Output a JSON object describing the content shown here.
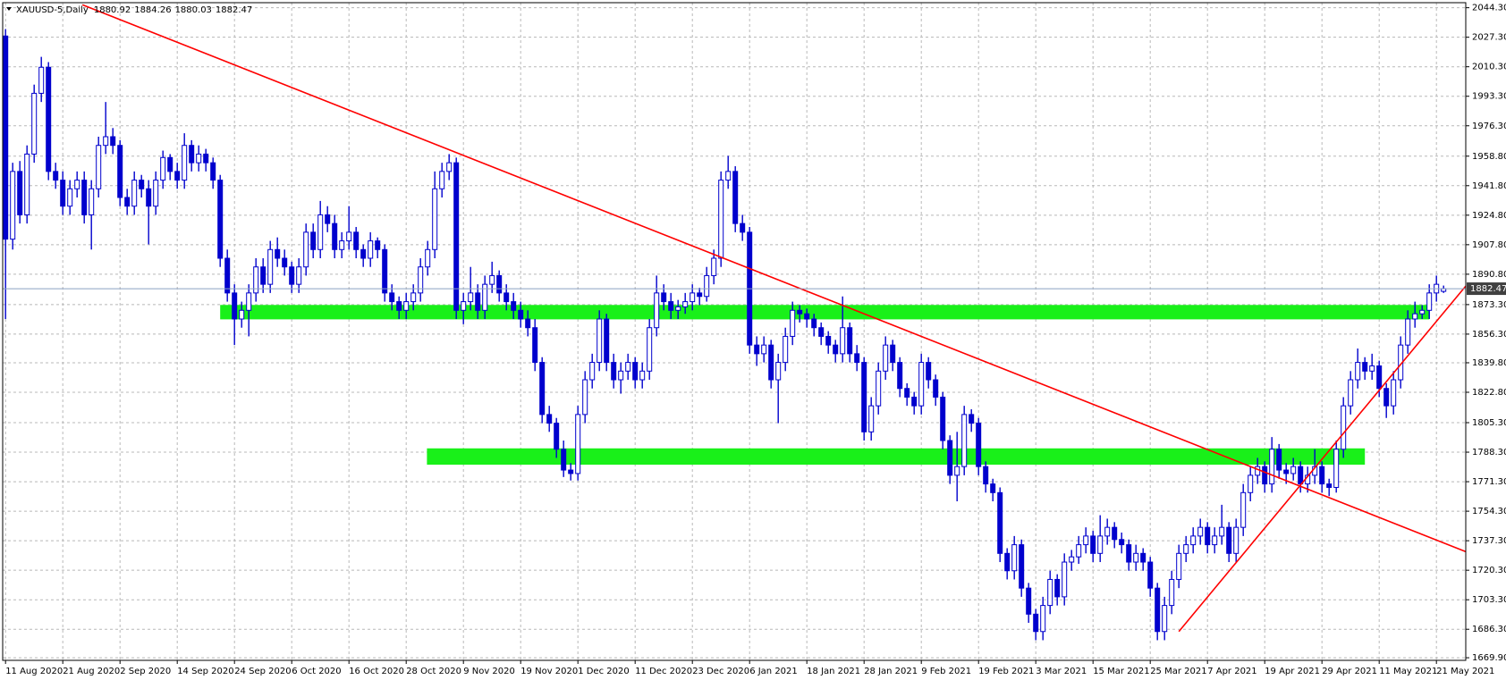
{
  "chart_data": {
    "type": "candlestick",
    "symbol": "XAUUSD-5,Daily",
    "up_color": "#ffffff",
    "down_color": "#0000cd",
    "wick_color": "#0000cd",
    "grid": true,
    "grid_color": "#b8b8b8",
    "xlim": [
      -0.4,
      204.1
    ],
    "ylim": [
      1668.4,
      2047.2
    ],
    "yticks": [
      {
        "value": 2044.3,
        "label": "2044.30"
      },
      {
        "value": 2027.3,
        "label": "2027.30"
      },
      {
        "value": 2010.3,
        "label": "2010.30"
      },
      {
        "value": 1993.3,
        "label": "1993.30"
      },
      {
        "value": 1976.3,
        "label": "1976.30"
      },
      {
        "value": 1958.8,
        "label": "1958.80"
      },
      {
        "value": 1941.8,
        "label": "1941.80"
      },
      {
        "value": 1924.8,
        "label": "1924.80"
      },
      {
        "value": 1907.8,
        "label": "1907.80"
      },
      {
        "value": 1890.8,
        "label": "1890.80"
      },
      {
        "value": 1873.3,
        "label": "1873.30"
      },
      {
        "value": 1856.3,
        "label": "1856.30"
      },
      {
        "value": 1839.8,
        "label": "1839.80"
      },
      {
        "value": 1822.8,
        "label": "1822.80"
      },
      {
        "value": 1805.3,
        "label": "1805.30"
      },
      {
        "value": 1788.3,
        "label": "1788.30"
      },
      {
        "value": 1771.3,
        "label": "1771.30"
      },
      {
        "value": 1754.3,
        "label": "1754.30"
      },
      {
        "value": 1737.3,
        "label": "1737.30"
      },
      {
        "value": 1720.3,
        "label": "1720.30"
      },
      {
        "value": 1703.3,
        "label": "1703.30"
      },
      {
        "value": 1686.3,
        "label": "1686.30"
      },
      {
        "value": 1669.9,
        "label": "1669.90"
      }
    ],
    "xticks": [
      {
        "value": 0,
        "label": "11 Aug 2020"
      },
      {
        "value": 8,
        "label": "21 Aug 2020"
      },
      {
        "value": 16,
        "label": "2 Sep 2020"
      },
      {
        "value": 24,
        "label": "14 Sep 2020"
      },
      {
        "value": 32,
        "label": "24 Sep 2020"
      },
      {
        "value": 40,
        "label": "6 Oct 2020"
      },
      {
        "value": 48,
        "label": "16 Oct 2020"
      },
      {
        "value": 56,
        "label": "28 Oct 2020"
      },
      {
        "value": 64,
        "label": "9 Nov 2020"
      },
      {
        "value": 72,
        "label": "19 Nov 2020"
      },
      {
        "value": 80,
        "label": "1 Dec 2020"
      },
      {
        "value": 88,
        "label": "11 Dec 2020"
      },
      {
        "value": 96,
        "label": "23 Dec 2020"
      },
      {
        "value": 104,
        "label": "6 Jan 2021"
      },
      {
        "value": 112,
        "label": "18 Jan 2021"
      },
      {
        "value": 120,
        "label": "28 Jan 2021"
      },
      {
        "value": 128,
        "label": "9 Feb 2021"
      },
      {
        "value": 136,
        "label": "19 Feb 2021"
      },
      {
        "value": 144,
        "label": "3 Mar 2021"
      },
      {
        "value": 152,
        "label": "15 Mar 2021"
      },
      {
        "value": 160,
        "label": "25 Mar 2021"
      },
      {
        "value": 168,
        "label": "7 Apr 2021"
      },
      {
        "value": 176,
        "label": "19 Apr 2021"
      },
      {
        "value": 184,
        "label": "29 Apr 2021"
      },
      {
        "value": 192,
        "label": "11 May 2021"
      },
      {
        "value": 200,
        "label": "21 May 2021"
      }
    ],
    "zones": [
      {
        "x": [
          30,
          199
        ],
        "low": 1864.8,
        "high": 1873.1,
        "color": "#19f019"
      },
      {
        "x": [
          58.9,
          190
        ],
        "low": 1781.1,
        "high": 1790.5,
        "color": "#19f019"
      }
    ],
    "trendlines": [
      {
        "x": [
          10.75,
          204.1
        ],
        "y": [
          2046,
          1731
        ],
        "color": "#ff0000"
      },
      {
        "x": [
          164,
          204.1
        ],
        "y": [
          1685,
          1884
        ],
        "color": "#ff0000"
      }
    ],
    "candles": [
      [
        2028,
        2032,
        1865,
        1911
      ],
      [
        1911,
        1955,
        1905,
        1950
      ],
      [
        1950,
        1956,
        1920,
        1925
      ],
      [
        1925,
        1965,
        1920,
        1960
      ],
      [
        1960,
        2000,
        1955,
        1995
      ],
      [
        1995,
        2016,
        1990,
        2010
      ],
      [
        2010,
        2013,
        1945,
        1950
      ],
      [
        1950,
        1955,
        1940,
        1945
      ],
      [
        1945,
        1950,
        1925,
        1930
      ],
      [
        1930,
        1945,
        1925,
        1940
      ],
      [
        1940,
        1950,
        1935,
        1945
      ],
      [
        1945,
        1950,
        1920,
        1925
      ],
      [
        1925,
        1945,
        1905,
        1940
      ],
      [
        1940,
        1970,
        1935,
        1965
      ],
      [
        1965,
        1990,
        1960,
        1970
      ],
      [
        1970,
        1975,
        1960,
        1965
      ],
      [
        1965,
        1968,
        1930,
        1935
      ],
      [
        1935,
        1940,
        1925,
        1930
      ],
      [
        1930,
        1950,
        1925,
        1945
      ],
      [
        1945,
        1948,
        1935,
        1940
      ],
      [
        1940,
        1945,
        1908,
        1930
      ],
      [
        1930,
        1950,
        1925,
        1945
      ],
      [
        1945,
        1962,
        1940,
        1958
      ],
      [
        1958,
        1960,
        1945,
        1950
      ],
      [
        1950,
        1955,
        1940,
        1945
      ],
      [
        1945,
        1972,
        1940,
        1965
      ],
      [
        1965,
        1968,
        1950,
        1955
      ],
      [
        1955,
        1965,
        1950,
        1960
      ],
      [
        1960,
        1963,
        1950,
        1955
      ],
      [
        1955,
        1958,
        1940,
        1945
      ],
      [
        1945,
        1948,
        1895,
        1900
      ],
      [
        1900,
        1905,
        1875,
        1880
      ],
      [
        1880,
        1885,
        1850,
        1865
      ],
      [
        1865,
        1875,
        1860,
        1870
      ],
      [
        1870,
        1885,
        1855,
        1880
      ],
      [
        1880,
        1900,
        1875,
        1895
      ],
      [
        1895,
        1900,
        1880,
        1885
      ],
      [
        1885,
        1910,
        1880,
        1905
      ],
      [
        1905,
        1912,
        1895,
        1900
      ],
      [
        1900,
        1905,
        1890,
        1895
      ],
      [
        1895,
        1898,
        1880,
        1885
      ],
      [
        1885,
        1900,
        1880,
        1895
      ],
      [
        1895,
        1920,
        1890,
        1915
      ],
      [
        1915,
        1920,
        1900,
        1905
      ],
      [
        1905,
        1933,
        1900,
        1925
      ],
      [
        1925,
        1930,
        1915,
        1920
      ],
      [
        1920,
        1925,
        1900,
        1905
      ],
      [
        1905,
        1915,
        1900,
        1910
      ],
      [
        1910,
        1930,
        1905,
        1915
      ],
      [
        1915,
        1918,
        1900,
        1905
      ],
      [
        1905,
        1908,
        1895,
        1900
      ],
      [
        1900,
        1915,
        1895,
        1910
      ],
      [
        1910,
        1912,
        1900,
        1905
      ],
      [
        1905,
        1908,
        1875,
        1880
      ],
      [
        1880,
        1885,
        1870,
        1875
      ],
      [
        1875,
        1878,
        1865,
        1870
      ],
      [
        1870,
        1880,
        1865,
        1875
      ],
      [
        1875,
        1885,
        1870,
        1880
      ],
      [
        1880,
        1900,
        1875,
        1895
      ],
      [
        1895,
        1910,
        1890,
        1905
      ],
      [
        1905,
        1950,
        1900,
        1940
      ],
      [
        1940,
        1955,
        1935,
        1950
      ],
      [
        1950,
        1960,
        1945,
        1955
      ],
      [
        1955,
        1958,
        1865,
        1870
      ],
      [
        1870,
        1880,
        1862,
        1875
      ],
      [
        1875,
        1895,
        1870,
        1880
      ],
      [
        1880,
        1885,
        1865,
        1870
      ],
      [
        1870,
        1890,
        1865,
        1885
      ],
      [
        1885,
        1898,
        1880,
        1890
      ],
      [
        1890,
        1893,
        1875,
        1880
      ],
      [
        1880,
        1885,
        1870,
        1875
      ],
      [
        1875,
        1880,
        1865,
        1870
      ],
      [
        1870,
        1875,
        1860,
        1865
      ],
      [
        1865,
        1870,
        1855,
        1860
      ],
      [
        1860,
        1865,
        1835,
        1840
      ],
      [
        1840,
        1843,
        1805,
        1810
      ],
      [
        1810,
        1815,
        1800,
        1805
      ],
      [
        1805,
        1808,
        1785,
        1790
      ],
      [
        1790,
        1795,
        1774,
        1778
      ],
      [
        1778,
        1782,
        1772,
        1776
      ],
      [
        1776,
        1815,
        1772,
        1810
      ],
      [
        1810,
        1835,
        1805,
        1830
      ],
      [
        1830,
        1845,
        1825,
        1840
      ],
      [
        1840,
        1870,
        1835,
        1865
      ],
      [
        1865,
        1868,
        1835,
        1840
      ],
      [
        1840,
        1845,
        1825,
        1830
      ],
      [
        1830,
        1840,
        1822,
        1835
      ],
      [
        1835,
        1845,
        1830,
        1840
      ],
      [
        1840,
        1843,
        1825,
        1830
      ],
      [
        1830,
        1840,
        1825,
        1835
      ],
      [
        1835,
        1865,
        1830,
        1860
      ],
      [
        1860,
        1890,
        1855,
        1880
      ],
      [
        1880,
        1885,
        1870,
        1875
      ],
      [
        1875,
        1880,
        1865,
        1870
      ],
      [
        1870,
        1876,
        1865,
        1872
      ],
      [
        1872,
        1880,
        1868,
        1875
      ],
      [
        1875,
        1885,
        1870,
        1880
      ],
      [
        1880,
        1883,
        1873,
        1878
      ],
      [
        1878,
        1895,
        1875,
        1890
      ],
      [
        1890,
        1905,
        1885,
        1900
      ],
      [
        1900,
        1950,
        1895,
        1945
      ],
      [
        1945,
        1959,
        1940,
        1950
      ],
      [
        1950,
        1953,
        1915,
        1920
      ],
      [
        1920,
        1925,
        1910,
        1915
      ],
      [
        1915,
        1918,
        1845,
        1850
      ],
      [
        1850,
        1855,
        1838,
        1845
      ],
      [
        1845,
        1855,
        1840,
        1850
      ],
      [
        1850,
        1853,
        1825,
        1830
      ],
      [
        1830,
        1845,
        1805,
        1840
      ],
      [
        1840,
        1860,
        1835,
        1855
      ],
      [
        1855,
        1875,
        1850,
        1870
      ],
      [
        1870,
        1873,
        1863,
        1868
      ],
      [
        1868,
        1871,
        1860,
        1865
      ],
      [
        1865,
        1868,
        1855,
        1860
      ],
      [
        1860,
        1863,
        1850,
        1855
      ],
      [
        1855,
        1858,
        1845,
        1850
      ],
      [
        1850,
        1853,
        1840,
        1845
      ],
      [
        1845,
        1878,
        1840,
        1860
      ],
      [
        1860,
        1863,
        1840,
        1845
      ],
      [
        1845,
        1850,
        1835,
        1840
      ],
      [
        1840,
        1843,
        1795,
        1800
      ],
      [
        1800,
        1820,
        1795,
        1815
      ],
      [
        1815,
        1840,
        1810,
        1835
      ],
      [
        1835,
        1855,
        1830,
        1850
      ],
      [
        1850,
        1853,
        1835,
        1840
      ],
      [
        1840,
        1843,
        1820,
        1825
      ],
      [
        1825,
        1828,
        1815,
        1820
      ],
      [
        1820,
        1823,
        1810,
        1815
      ],
      [
        1815,
        1845,
        1810,
        1840
      ],
      [
        1840,
        1843,
        1825,
        1830
      ],
      [
        1830,
        1833,
        1815,
        1820
      ],
      [
        1820,
        1823,
        1790,
        1795
      ],
      [
        1795,
        1798,
        1770,
        1775
      ],
      [
        1775,
        1800,
        1760,
        1780
      ],
      [
        1780,
        1815,
        1775,
        1810
      ],
      [
        1810,
        1813,
        1800,
        1805
      ],
      [
        1805,
        1808,
        1775,
        1780
      ],
      [
        1780,
        1783,
        1765,
        1770
      ],
      [
        1770,
        1773,
        1760,
        1765
      ],
      [
        1765,
        1768,
        1725,
        1730
      ],
      [
        1730,
        1733,
        1715,
        1720
      ],
      [
        1720,
        1740,
        1715,
        1735
      ],
      [
        1735,
        1738,
        1705,
        1710
      ],
      [
        1710,
        1713,
        1690,
        1695
      ],
      [
        1695,
        1698,
        1680,
        1685
      ],
      [
        1685,
        1705,
        1680,
        1700
      ],
      [
        1700,
        1720,
        1695,
        1715
      ],
      [
        1715,
        1718,
        1700,
        1705
      ],
      [
        1705,
        1730,
        1700,
        1725
      ],
      [
        1725,
        1732,
        1720,
        1728
      ],
      [
        1728,
        1740,
        1724,
        1735
      ],
      [
        1735,
        1745,
        1730,
        1740
      ],
      [
        1740,
        1743,
        1725,
        1730
      ],
      [
        1730,
        1752,
        1725,
        1740
      ],
      [
        1740,
        1750,
        1735,
        1745
      ],
      [
        1745,
        1748,
        1733,
        1738
      ],
      [
        1738,
        1742,
        1730,
        1735
      ],
      [
        1735,
        1738,
        1720,
        1725
      ],
      [
        1725,
        1735,
        1720,
        1730
      ],
      [
        1730,
        1733,
        1720,
        1725
      ],
      [
        1725,
        1728,
        1705,
        1710
      ],
      [
        1710,
        1713,
        1680,
        1685
      ],
      [
        1685,
        1705,
        1680,
        1700
      ],
      [
        1700,
        1720,
        1695,
        1715
      ],
      [
        1715,
        1735,
        1710,
        1730
      ],
      [
        1730,
        1740,
        1725,
        1735
      ],
      [
        1735,
        1745,
        1730,
        1740
      ],
      [
        1740,
        1750,
        1735,
        1745
      ],
      [
        1745,
        1748,
        1730,
        1735
      ],
      [
        1735,
        1745,
        1730,
        1740
      ],
      [
        1740,
        1758,
        1735,
        1745
      ],
      [
        1745,
        1748,
        1725,
        1730
      ],
      [
        1730,
        1750,
        1725,
        1745
      ],
      [
        1745,
        1770,
        1740,
        1765
      ],
      [
        1765,
        1780,
        1760,
        1775
      ],
      [
        1775,
        1785,
        1770,
        1780
      ],
      [
        1780,
        1783,
        1765,
        1770
      ],
      [
        1770,
        1797,
        1765,
        1790
      ],
      [
        1790,
        1793,
        1773,
        1778
      ],
      [
        1778,
        1782,
        1770,
        1776
      ],
      [
        1776,
        1785,
        1772,
        1780
      ],
      [
        1780,
        1783,
        1765,
        1770
      ],
      [
        1770,
        1780,
        1765,
        1775
      ],
      [
        1775,
        1790,
        1770,
        1780
      ],
      [
        1780,
        1783,
        1765,
        1770
      ],
      [
        1770,
        1773,
        1763,
        1768
      ],
      [
        1768,
        1795,
        1765,
        1790
      ],
      [
        1790,
        1820,
        1785,
        1815
      ],
      [
        1815,
        1835,
        1810,
        1830
      ],
      [
        1830,
        1848,
        1825,
        1840
      ],
      [
        1840,
        1843,
        1830,
        1835
      ],
      [
        1835,
        1845,
        1830,
        1838
      ],
      [
        1838,
        1841,
        1820,
        1825
      ],
      [
        1825,
        1828,
        1808,
        1815
      ],
      [
        1815,
        1835,
        1810,
        1830
      ],
      [
        1830,
        1855,
        1825,
        1850
      ],
      [
        1850,
        1870,
        1845,
        1865
      ],
      [
        1865,
        1875,
        1860,
        1868
      ],
      [
        1868,
        1873,
        1865,
        1870
      ],
      [
        1870,
        1885,
        1865,
        1880
      ],
      [
        1880,
        1890,
        1875,
        1885
      ],
      [
        1880.92,
        1884.26,
        1880.03,
        1882.47
      ]
    ]
  }
}
